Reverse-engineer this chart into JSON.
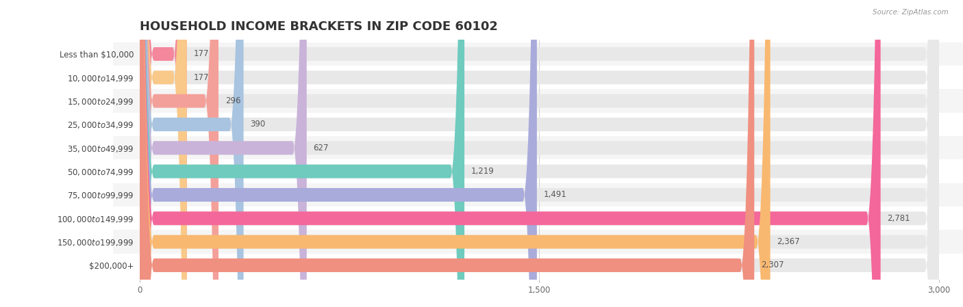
{
  "title": "HOUSEHOLD INCOME BRACKETS IN ZIP CODE 60102",
  "source": "Source: ZipAtlas.com",
  "categories": [
    "Less than $10,000",
    "$10,000 to $14,999",
    "$15,000 to $24,999",
    "$25,000 to $34,999",
    "$35,000 to $49,999",
    "$50,000 to $74,999",
    "$75,000 to $99,999",
    "$100,000 to $149,999",
    "$150,000 to $199,999",
    "$200,000+"
  ],
  "values": [
    177,
    177,
    296,
    390,
    627,
    1219,
    1491,
    2781,
    2367,
    2307
  ],
  "bar_colors": [
    "#F4879C",
    "#F9C98A",
    "#F4A09A",
    "#A8C4E0",
    "#C9B3D9",
    "#6ECBBE",
    "#A9ABDB",
    "#F4679A",
    "#F9B870",
    "#F09080"
  ],
  "background_color": "#ffffff",
  "bar_background_color": "#e8e8e8",
  "xlim": [
    0,
    3000
  ],
  "xticks": [
    0,
    1500,
    3000
  ],
  "title_fontsize": 13,
  "label_fontsize": 8.5,
  "value_fontsize": 8.5,
  "bar_height": 0.58,
  "row_bg_colors": [
    "#f5f5f5",
    "#ffffff"
  ]
}
